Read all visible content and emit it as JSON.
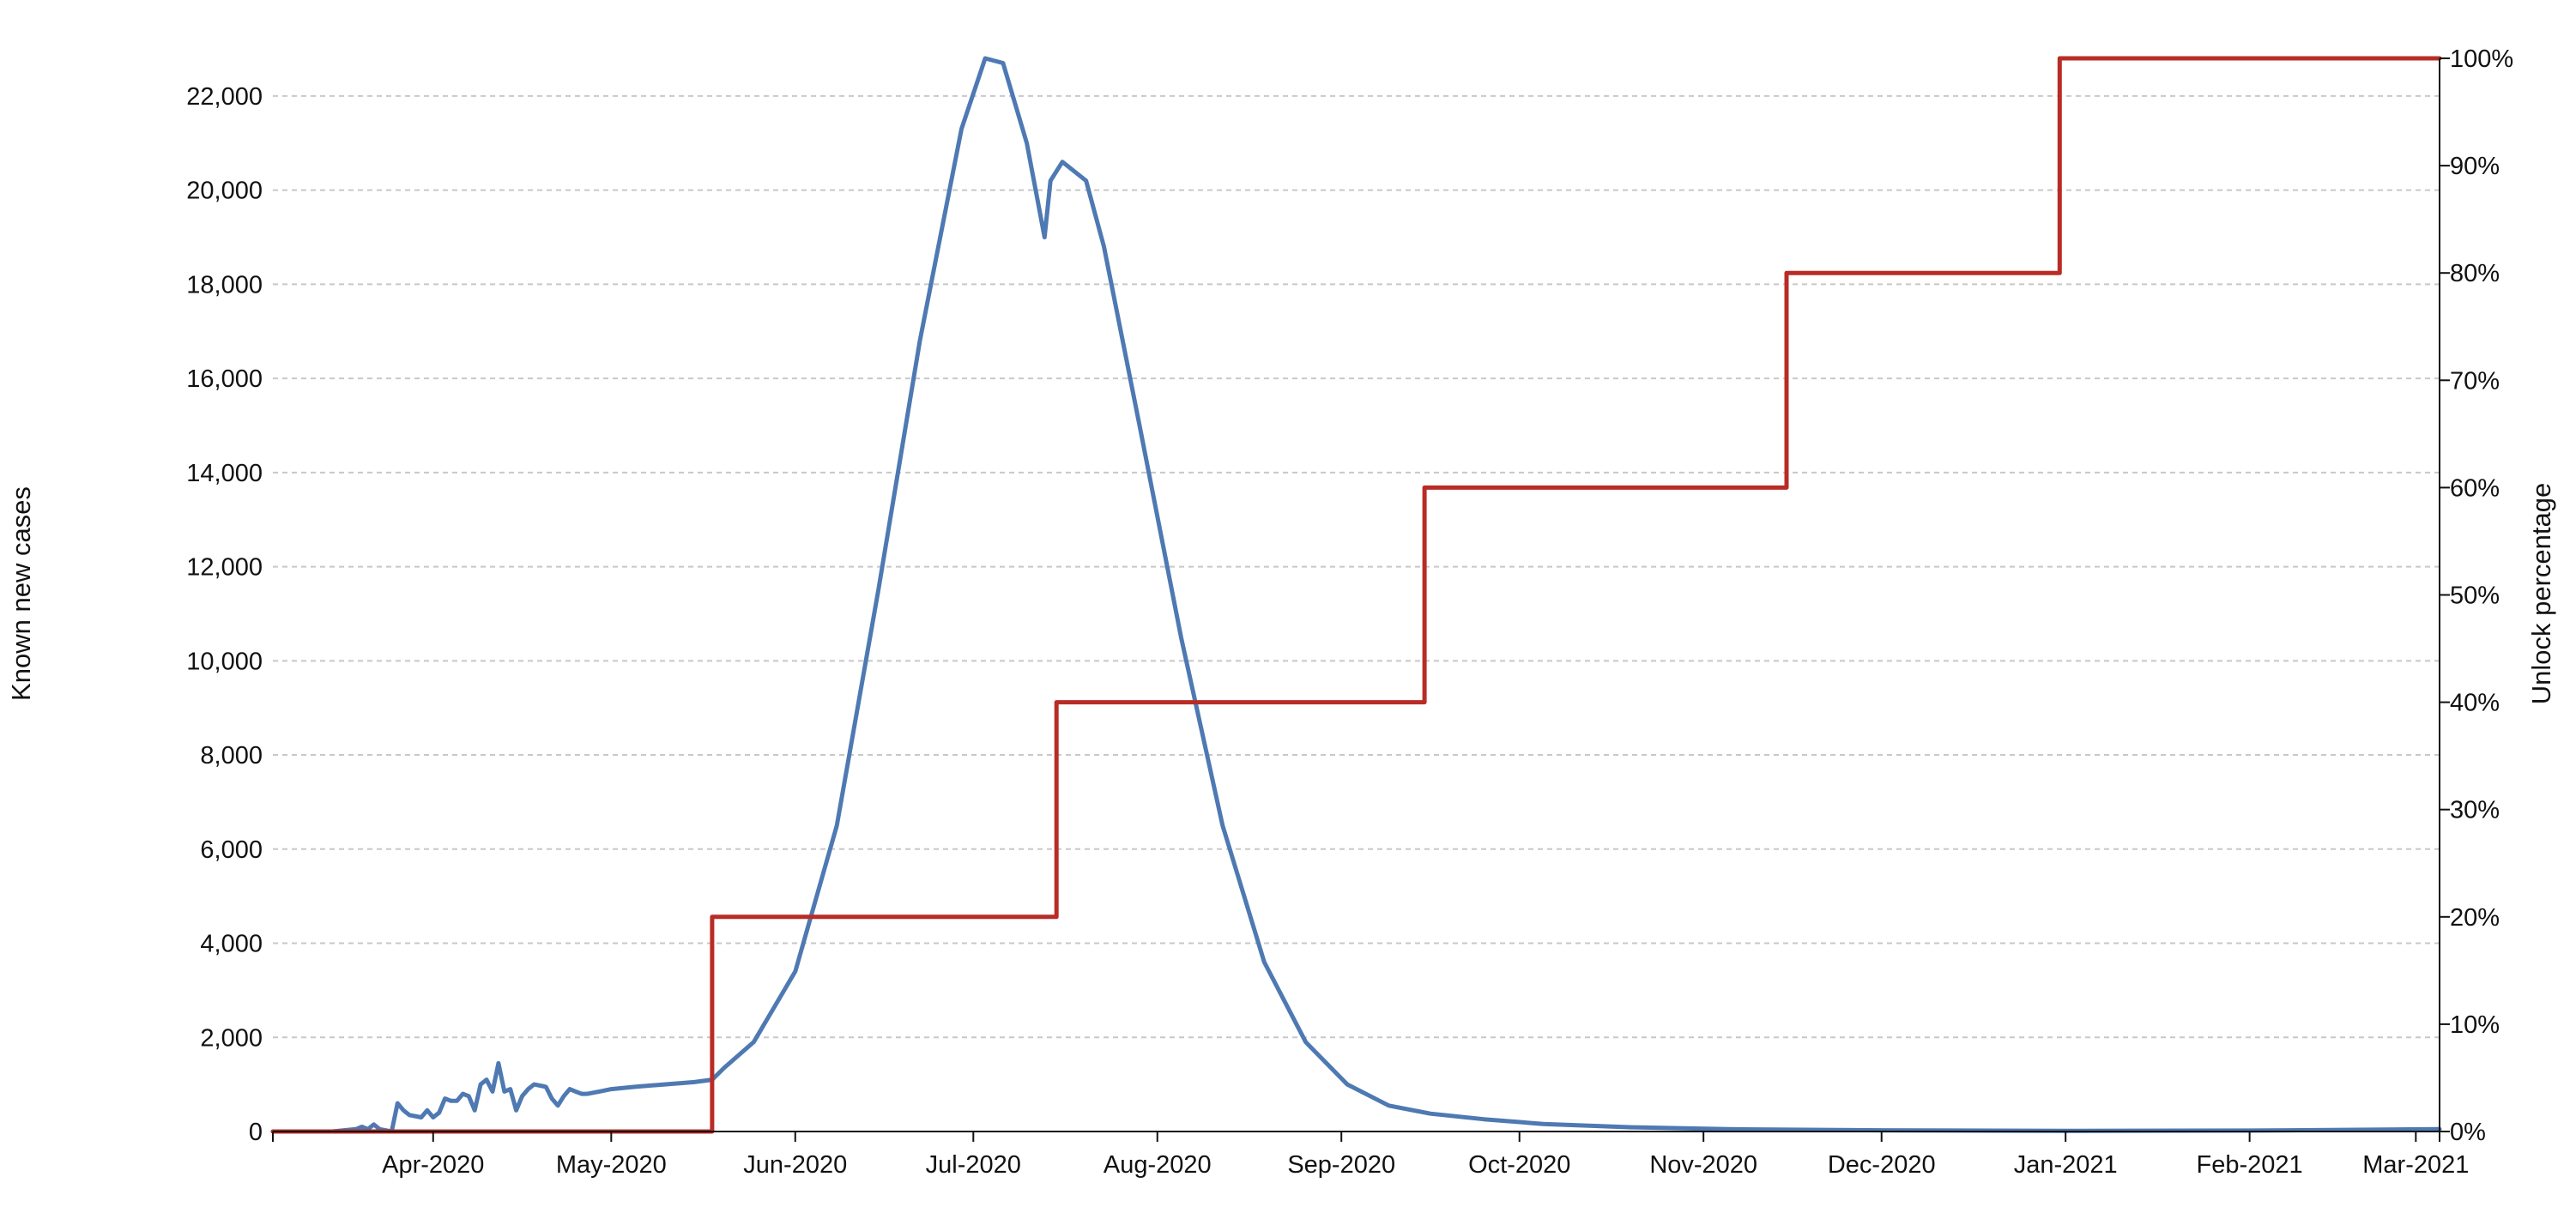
{
  "chart_data": {
    "type": "line",
    "xlabel": "",
    "ylabel": "Known new cases",
    "y2label": "Unlock percentage",
    "x_range": [
      "2020-03-05",
      "2021-03-05"
    ],
    "ylim": [
      0,
      22800
    ],
    "y2lim": [
      0,
      100
    ],
    "grid": "horizontal dashed",
    "x_ticks": [
      {
        "date": "2020-04-01",
        "label": "Apr-2020"
      },
      {
        "date": "2020-05-01",
        "label": "May-2020"
      },
      {
        "date": "2020-06-01",
        "label": "Jun-2020"
      },
      {
        "date": "2020-07-01",
        "label": "Jul-2020"
      },
      {
        "date": "2020-08-01",
        "label": "Aug-2020"
      },
      {
        "date": "2020-09-01",
        "label": "Sep-2020"
      },
      {
        "date": "2020-10-01",
        "label": "Oct-2020"
      },
      {
        "date": "2020-11-01",
        "label": "Nov-2020"
      },
      {
        "date": "2020-12-01",
        "label": "Dec-2020"
      },
      {
        "date": "2021-01-01",
        "label": "Jan-2021"
      },
      {
        "date": "2021-02-01",
        "label": "Feb-2021"
      },
      {
        "date": "2021-03-01",
        "label": "Mar-2021"
      }
    ],
    "y_ticks": [
      {
        "value": 0,
        "label": "0"
      },
      {
        "value": 2000,
        "label": "2,000"
      },
      {
        "value": 4000,
        "label": "4,000"
      },
      {
        "value": 6000,
        "label": "6,000"
      },
      {
        "value": 8000,
        "label": "8,000"
      },
      {
        "value": 10000,
        "label": "10,000"
      },
      {
        "value": 12000,
        "label": "12,000"
      },
      {
        "value": 14000,
        "label": "14,000"
      },
      {
        "value": 16000,
        "label": "16,000"
      },
      {
        "value": 18000,
        "label": "18,000"
      },
      {
        "value": 20000,
        "label": "20,000"
      },
      {
        "value": 22000,
        "label": "22,000"
      }
    ],
    "y2_ticks": [
      {
        "value": 0,
        "label": "0%"
      },
      {
        "value": 10,
        "label": "10%"
      },
      {
        "value": 20,
        "label": "20%"
      },
      {
        "value": 30,
        "label": "30%"
      },
      {
        "value": 40,
        "label": "40%"
      },
      {
        "value": 50,
        "label": "50%"
      },
      {
        "value": 60,
        "label": "60%"
      },
      {
        "value": 70,
        "label": "70%"
      },
      {
        "value": 80,
        "label": "80%"
      },
      {
        "value": 90,
        "label": "90%"
      },
      {
        "value": 100,
        "label": "100%"
      }
    ],
    "series": [
      {
        "axis": "left",
        "color": "#4e79b2",
        "points": [
          [
            "2020-03-05",
            0
          ],
          [
            "2020-03-15",
            0
          ],
          [
            "2020-03-19",
            50
          ],
          [
            "2020-03-20",
            100
          ],
          [
            "2020-03-21",
            50
          ],
          [
            "2020-03-22",
            150
          ],
          [
            "2020-03-23",
            50
          ],
          [
            "2020-03-25",
            0
          ],
          [
            "2020-03-26",
            600
          ],
          [
            "2020-03-27",
            450
          ],
          [
            "2020-03-28",
            350
          ],
          [
            "2020-03-30",
            300
          ],
          [
            "2020-03-31",
            450
          ],
          [
            "2020-04-01",
            300
          ],
          [
            "2020-04-02",
            400
          ],
          [
            "2020-04-03",
            700
          ],
          [
            "2020-04-04",
            650
          ],
          [
            "2020-04-05",
            650
          ],
          [
            "2020-04-06",
            800
          ],
          [
            "2020-04-07",
            750
          ],
          [
            "2020-04-08",
            450
          ],
          [
            "2020-04-09",
            1000
          ],
          [
            "2020-04-10",
            1100
          ],
          [
            "2020-04-11",
            850
          ],
          [
            "2020-04-12",
            1450
          ],
          [
            "2020-04-13",
            850
          ],
          [
            "2020-04-14",
            900
          ],
          [
            "2020-04-15",
            450
          ],
          [
            "2020-04-16",
            750
          ],
          [
            "2020-04-17",
            900
          ],
          [
            "2020-04-18",
            1000
          ],
          [
            "2020-04-20",
            950
          ],
          [
            "2020-04-21",
            700
          ],
          [
            "2020-04-22",
            550
          ],
          [
            "2020-04-23",
            750
          ],
          [
            "2020-04-24",
            900
          ],
          [
            "2020-04-25",
            850
          ],
          [
            "2020-04-26",
            800
          ],
          [
            "2020-04-27",
            800
          ],
          [
            "2020-04-29",
            850
          ],
          [
            "2020-05-01",
            900
          ],
          [
            "2020-05-05",
            950
          ],
          [
            "2020-05-10",
            1000
          ],
          [
            "2020-05-15",
            1050
          ],
          [
            "2020-05-18",
            1100
          ],
          [
            "2020-05-20",
            1350
          ],
          [
            "2020-05-25",
            1900
          ],
          [
            "2020-06-01",
            3400
          ],
          [
            "2020-06-08",
            6500
          ],
          [
            "2020-06-15",
            11500
          ],
          [
            "2020-06-22",
            16800
          ],
          [
            "2020-06-29",
            21300
          ],
          [
            "2020-07-03",
            22800
          ],
          [
            "2020-07-06",
            22700
          ],
          [
            "2020-07-10",
            21000
          ],
          [
            "2020-07-13",
            19000
          ],
          [
            "2020-07-14",
            20200
          ],
          [
            "2020-07-16",
            20600
          ],
          [
            "2020-07-20",
            20200
          ],
          [
            "2020-07-23",
            18800
          ],
          [
            "2020-07-29",
            15000
          ],
          [
            "2020-08-05",
            10500
          ],
          [
            "2020-08-12",
            6500
          ],
          [
            "2020-08-19",
            3600
          ],
          [
            "2020-08-26",
            1900
          ],
          [
            "2020-09-02",
            1000
          ],
          [
            "2020-09-09",
            550
          ],
          [
            "2020-09-16",
            380
          ],
          [
            "2020-09-25",
            260
          ],
          [
            "2020-10-05",
            160
          ],
          [
            "2020-10-20",
            90
          ],
          [
            "2020-11-05",
            50
          ],
          [
            "2020-12-01",
            25
          ],
          [
            "2021-01-01",
            15
          ],
          [
            "2021-02-01",
            20
          ],
          [
            "2021-03-05",
            50
          ]
        ]
      },
      {
        "axis": "right",
        "color": "#b92c26",
        "step": true,
        "points": [
          [
            "2020-03-05",
            0
          ],
          [
            "2020-05-18",
            0
          ],
          [
            "2020-05-18",
            20
          ],
          [
            "2020-07-15",
            20
          ],
          [
            "2020-07-15",
            40
          ],
          [
            "2020-09-15",
            40
          ],
          [
            "2020-09-15",
            60
          ],
          [
            "2020-11-15",
            60
          ],
          [
            "2020-11-15",
            80
          ],
          [
            "2020-12-31",
            80
          ],
          [
            "2020-12-31",
            100
          ],
          [
            "2021-03-05",
            100
          ]
        ]
      }
    ]
  }
}
